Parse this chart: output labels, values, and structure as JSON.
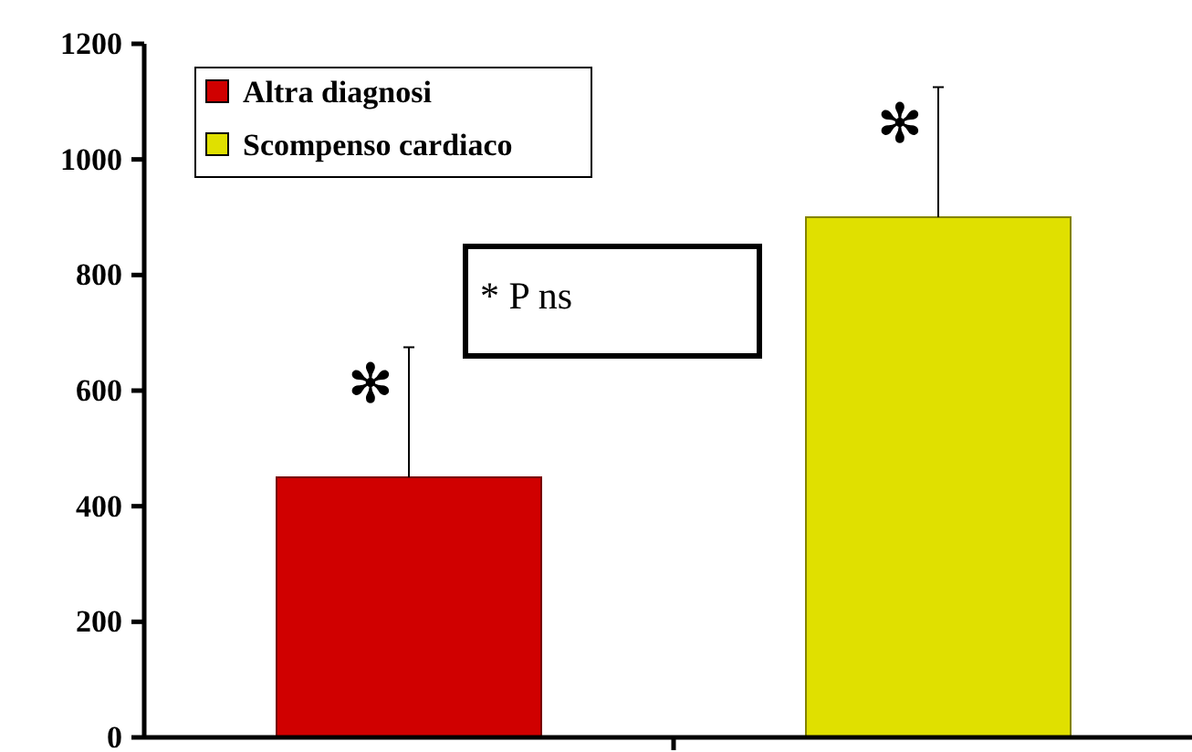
{
  "chart_data": {
    "type": "bar",
    "categories": [
      null,
      null
    ],
    "series": [
      {
        "name": "Altra diagnosi",
        "color": "#d00000",
        "values": [
          450,
          null
        ],
        "errors": [
          225,
          null
        ]
      },
      {
        "name": "Scompenso cardiaco",
        "color": "#e0e000",
        "values": [
          null,
          900
        ],
        "errors": [
          null,
          225
        ]
      }
    ],
    "ylim": [
      0,
      1200
    ],
    "yticks": [
      0,
      200,
      400,
      600,
      800,
      1000,
      1200
    ],
    "legend": "top left",
    "grid": false,
    "annotations": [
      "✻",
      "✻",
      "* P ns"
    ]
  }
}
